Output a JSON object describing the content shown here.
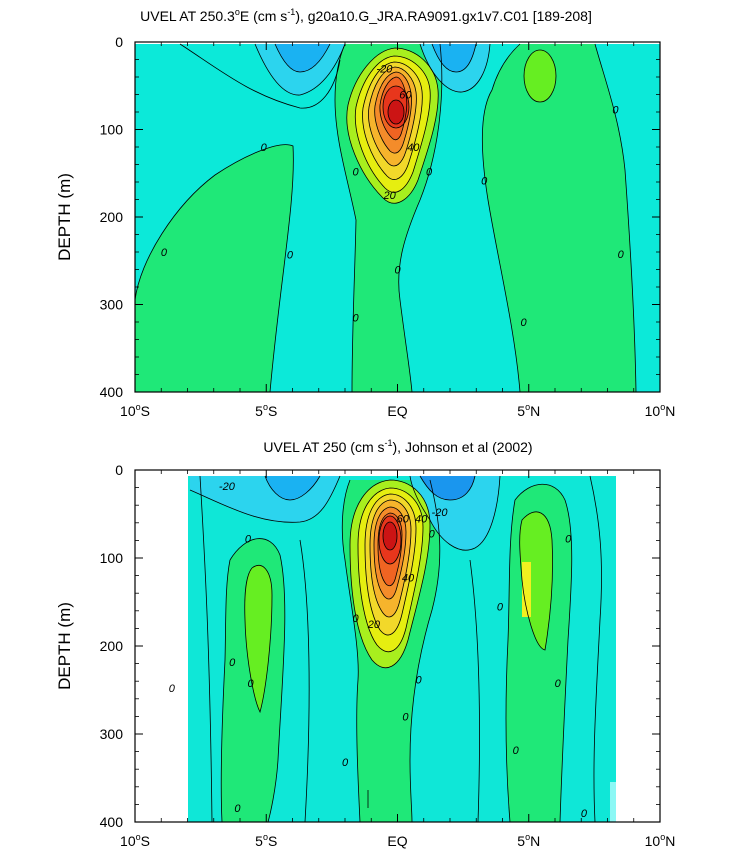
{
  "chart_data": [
    {
      "type": "heatmap",
      "title_main": "UVEL AT 250.3",
      "title_deg": "o",
      "title_mid": "E (cm s",
      "title_sup": "-1",
      "title_end": "), g20a10.G_JRA.RA9091.gx1v7.C01 [189-208]",
      "ylabel": "DEPTH (m)",
      "xlim": [
        -10,
        10
      ],
      "ylim": [
        400,
        0
      ],
      "x_ticks": [
        {
          "v": -10,
          "num": "10",
          "hem": "S"
        },
        {
          "v": -5,
          "num": "5",
          "hem": "S"
        },
        {
          "v": 0,
          "num": "EQ",
          "hem": ""
        },
        {
          "v": 5,
          "num": "5",
          "hem": "N"
        },
        {
          "v": 10,
          "num": "10",
          "hem": "N"
        }
      ],
      "y_ticks": [
        "0",
        "100",
        "200",
        "300",
        "400"
      ],
      "contour_labels": [
        {
          "text": "-20",
          "x": -0.5,
          "y": 30
        },
        {
          "text": "60",
          "x": 0.3,
          "y": 60
        },
        {
          "text": "40",
          "x": 0.6,
          "y": 120
        },
        {
          "text": "20",
          "x": -0.3,
          "y": 175
        },
        {
          "text": "0",
          "x": 0.0,
          "y": 260
        },
        {
          "text": "0",
          "x": -5.1,
          "y": 120
        },
        {
          "text": "0",
          "x": -1.6,
          "y": 148
        },
        {
          "text": "0",
          "x": 1.2,
          "y": 148
        },
        {
          "text": "0",
          "x": 3.3,
          "y": 158
        },
        {
          "text": "0",
          "x": -8.9,
          "y": 240
        },
        {
          "text": "0",
          "x": -4.1,
          "y": 243
        },
        {
          "text": "0",
          "x": 8.3,
          "y": 77
        },
        {
          "text": "0",
          "x": 8.5,
          "y": 242
        },
        {
          "text": "0",
          "x": -1.6,
          "y": 315
        },
        {
          "text": "0",
          "x": 4.8,
          "y": 320
        }
      ],
      "peak": {
        "x": 0.0,
        "y": 80,
        "value": 90
      },
      "max_abs": 90,
      "note_units": "cm/s"
    },
    {
      "type": "heatmap",
      "title_main": "UVEL AT 250 (cm s",
      "title_sup": "-1",
      "title_end": "), Johnson et al (2002)",
      "ylabel": "DEPTH (m)",
      "xlim": [
        -10,
        10
      ],
      "ylim": [
        400,
        0
      ],
      "x_ticks": [
        {
          "v": -10,
          "num": "10",
          "hem": "S"
        },
        {
          "v": -5,
          "num": "5",
          "hem": "S"
        },
        {
          "v": 0,
          "num": "EQ",
          "hem": ""
        },
        {
          "v": 5,
          "num": "5",
          "hem": "N"
        },
        {
          "v": 10,
          "num": "10",
          "hem": "N"
        }
      ],
      "y_ticks": [
        "0",
        "100",
        "200",
        "300",
        "400"
      ],
      "data_extent": {
        "x": [
          -8.0,
          8.3
        ],
        "y": [
          0,
          400
        ]
      },
      "contour_labels": [
        {
          "text": "-20",
          "x": -6.5,
          "y": 18
        },
        {
          "text": "-20",
          "x": 1.6,
          "y": 48
        },
        {
          "text": "60",
          "x": 0.2,
          "y": 55
        },
        {
          "text": "40",
          "x": 0.9,
          "y": 55
        },
        {
          "text": "40",
          "x": 0.4,
          "y": 122
        },
        {
          "text": "20",
          "x": -0.9,
          "y": 175
        },
        {
          "text": "0",
          "x": -5.7,
          "y": 78
        },
        {
          "text": "0",
          "x": 1.3,
          "y": 72
        },
        {
          "text": "0",
          "x": 6.5,
          "y": 78
        },
        {
          "text": "0",
          "x": 3.9,
          "y": 155
        },
        {
          "text": "0",
          "x": -1.6,
          "y": 168
        },
        {
          "text": "0",
          "x": -6.3,
          "y": 218
        },
        {
          "text": "0",
          "x": -8.6,
          "y": 248
        },
        {
          "text": "0",
          "x": -5.6,
          "y": 242
        },
        {
          "text": "0",
          "x": 0.8,
          "y": 238
        },
        {
          "text": "0",
          "x": 6.1,
          "y": 242
        },
        {
          "text": "0",
          "x": 0.3,
          "y": 280
        },
        {
          "text": "0",
          "x": 4.5,
          "y": 318
        },
        {
          "text": "0",
          "x": -2.0,
          "y": 332
        },
        {
          "text": "0",
          "x": -6.1,
          "y": 384
        },
        {
          "text": "0",
          "x": 7.1,
          "y": 390
        }
      ],
      "peak": {
        "x": -0.2,
        "y": 75,
        "value": 90
      },
      "max_abs": 90,
      "note_units": "cm/s"
    }
  ]
}
